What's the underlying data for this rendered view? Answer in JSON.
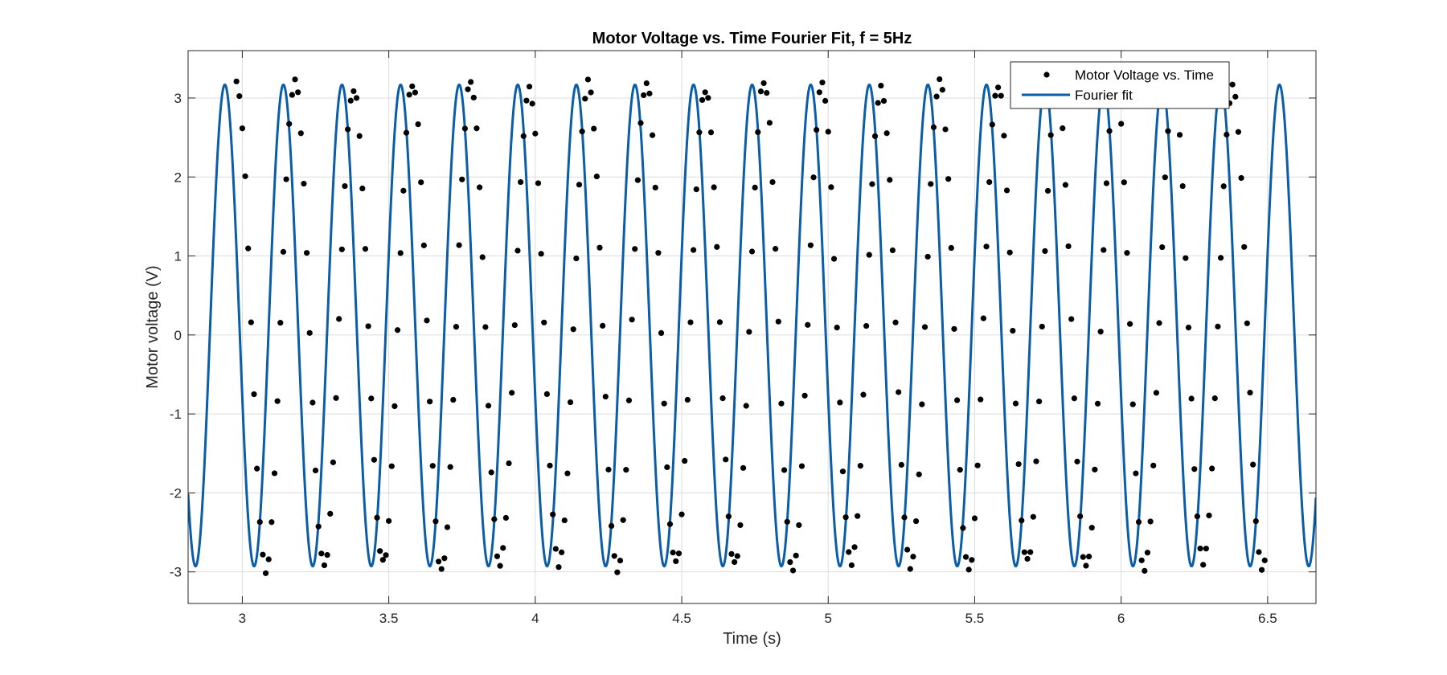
{
  "chart_data": {
    "type": "scatter",
    "title": "Motor Voltage vs. Time Fourier Fit, f = 5Hz",
    "xlabel": "Time (s)",
    "ylabel": "Motor voltage (V)",
    "xlim": [
      2.815,
      6.665
    ],
    "ylim": [
      -3.4,
      3.6
    ],
    "xticks": [
      3,
      3.5,
      4,
      4.5,
      5,
      5.5,
      6,
      6.5
    ],
    "xtick_labels": [
      "3",
      "3.5",
      "4",
      "4.5",
      "5",
      "5.5",
      "6",
      "6.5"
    ],
    "yticks": [
      -3,
      -2,
      -1,
      0,
      1,
      2,
      3
    ],
    "ytick_labels": [
      "-3",
      "-2",
      "-1",
      "0",
      "1",
      "2",
      "3"
    ],
    "grid": true,
    "legend_position": "top-right",
    "series": [
      {
        "name": "Motor Voltage vs. Time",
        "kind": "markers",
        "color": "#000000",
        "sample_interval_s": 0.01,
        "x_start": 2.98,
        "x_end": 6.49,
        "amplitude_V": 3.05,
        "offset_V": 0.12,
        "frequency_Hz": 5,
        "peak_time_s": 2.98
      },
      {
        "name": "Fourier fit",
        "kind": "line",
        "color": "#0a5da6",
        "model": "V(t) = a0 + a1*cos(2*pi*f*t) + b1*sin(2*pi*f*t)",
        "a0": 0.12,
        "a1": -0.91,
        "b1": -2.91,
        "frequency_Hz": 5,
        "x_start": 2.815,
        "x_end": 6.665
      }
    ]
  }
}
